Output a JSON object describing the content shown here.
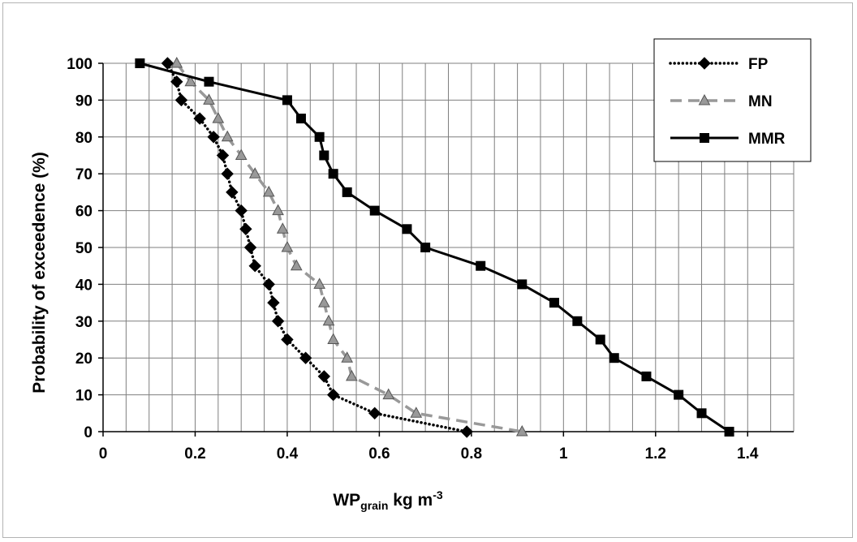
{
  "chart_data": {
    "type": "line",
    "title": "",
    "xlabel": {
      "main": "WP",
      "sub": "grain",
      "unit": " kg m",
      "sup": "-3"
    },
    "ylabel": "Probability of exceedence (%)",
    "xlim": [
      0,
      1.5
    ],
    "ylim": [
      0,
      100
    ],
    "x_ticks": [
      "0",
      "0.2",
      "0.4",
      "0.6",
      "0.8",
      "1",
      "1.2",
      "1.4"
    ],
    "x_tick_values": [
      0,
      0.2,
      0.4,
      0.6,
      0.8,
      1.0,
      1.2,
      1.4
    ],
    "y_ticks": [
      "0",
      "10",
      "20",
      "30",
      "40",
      "50",
      "60",
      "70",
      "80",
      "90",
      "100"
    ],
    "y_tick_values": [
      0,
      10,
      20,
      30,
      40,
      50,
      60,
      70,
      80,
      90,
      100
    ],
    "x_minor_step": 0.05,
    "grid": true,
    "legend_position": "top-right",
    "series": [
      {
        "name": "FP",
        "color": "#000000",
        "line_style": "dotted",
        "marker": "diamond",
        "points": [
          [
            0.14,
            100
          ],
          [
            0.16,
            95
          ],
          [
            0.17,
            90
          ],
          [
            0.21,
            85
          ],
          [
            0.24,
            80
          ],
          [
            0.26,
            75
          ],
          [
            0.27,
            70
          ],
          [
            0.28,
            65
          ],
          [
            0.3,
            60
          ],
          [
            0.31,
            55
          ],
          [
            0.32,
            50
          ],
          [
            0.33,
            45
          ],
          [
            0.36,
            40
          ],
          [
            0.37,
            35
          ],
          [
            0.38,
            30
          ],
          [
            0.4,
            25
          ],
          [
            0.44,
            20
          ],
          [
            0.48,
            15
          ],
          [
            0.5,
            10
          ],
          [
            0.59,
            5
          ],
          [
            0.79,
            0
          ]
        ]
      },
      {
        "name": "MN",
        "color": "#999999",
        "line_style": "dashed",
        "marker": "triangle",
        "points": [
          [
            0.16,
            100
          ],
          [
            0.19,
            95
          ],
          [
            0.23,
            90
          ],
          [
            0.25,
            85
          ],
          [
            0.27,
            80
          ],
          [
            0.3,
            75
          ],
          [
            0.33,
            70
          ],
          [
            0.36,
            65
          ],
          [
            0.38,
            60
          ],
          [
            0.39,
            55
          ],
          [
            0.4,
            50
          ],
          [
            0.42,
            45
          ],
          [
            0.47,
            40
          ],
          [
            0.48,
            35
          ],
          [
            0.49,
            30
          ],
          [
            0.5,
            25
          ],
          [
            0.53,
            20
          ],
          [
            0.54,
            15
          ],
          [
            0.62,
            10
          ],
          [
            0.68,
            5
          ],
          [
            0.91,
            0
          ]
        ]
      },
      {
        "name": "MMR",
        "color": "#000000",
        "line_style": "solid",
        "marker": "square",
        "points": [
          [
            0.08,
            100
          ],
          [
            0.23,
            95
          ],
          [
            0.4,
            90
          ],
          [
            0.43,
            85
          ],
          [
            0.47,
            80
          ],
          [
            0.48,
            75
          ],
          [
            0.5,
            70
          ],
          [
            0.53,
            65
          ],
          [
            0.59,
            60
          ],
          [
            0.66,
            55
          ],
          [
            0.7,
            50
          ],
          [
            0.82,
            45
          ],
          [
            0.91,
            40
          ],
          [
            0.98,
            35
          ],
          [
            1.03,
            30
          ],
          [
            1.08,
            25
          ],
          [
            1.11,
            20
          ],
          [
            1.18,
            15
          ],
          [
            1.25,
            10
          ],
          [
            1.3,
            5
          ],
          [
            1.36,
            0
          ]
        ]
      }
    ]
  }
}
